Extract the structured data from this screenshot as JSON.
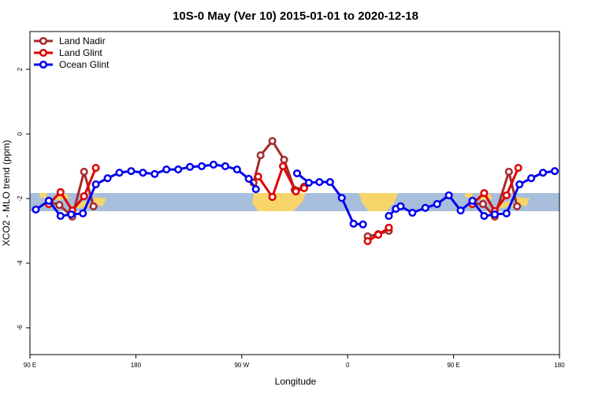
{
  "chart_data": {
    "type": "line",
    "title": "10S-0 May (Ver 10)   2015-01-01 to 2020-12-18",
    "x_label": "Longitude",
    "y_label": "XCO2 - MLO trend (ppm)",
    "xlim": [
      90,
      540
    ],
    "ylim": [
      -6.83,
      3.17
    ],
    "xticks": [
      {
        "value": 90,
        "label": "90 E"
      },
      180,
      {
        "value": 270,
        "label": "90 W"
      },
      {
        "value": 360,
        "label": "0"
      },
      {
        "value": 450,
        "label": "90 E"
      },
      {
        "value": 540,
        "label": "180"
      }
    ],
    "yticks": [
      2,
      0,
      -2,
      -4,
      -6
    ],
    "legend": "top-left",
    "series": [
      {
        "name": "Land Nadir",
        "color": "#a52a2a",
        "x": [
          106,
          115,
          126,
          136,
          144,
          null,
          280,
          286,
          296,
          306,
          315,
          323,
          null,
          377,
          386,
          395,
          null,
          466,
          475,
          485,
          497,
          504
        ],
        "values": [
          -2.1,
          -2.2,
          -2.56,
          -1.17,
          -2.24,
          null,
          -1.51,
          -0.66,
          -0.22,
          -0.8,
          -1.73,
          -1.63,
          null,
          -3.17,
          -3.1,
          -3.0,
          null,
          -2.15,
          -2.17,
          -2.56,
          -1.17,
          -2.24
        ]
      },
      {
        "name": "Land Glint",
        "color": "#e00000",
        "x": [
          106,
          116,
          126,
          136,
          146,
          null,
          284,
          296,
          305,
          316,
          323,
          null,
          377,
          386,
          395,
          null,
          466,
          476,
          485,
          495,
          505
        ],
        "values": [
          -2.17,
          -1.8,
          -2.37,
          -1.93,
          -1.05,
          null,
          -1.32,
          -1.95,
          -1.0,
          -1.78,
          -1.68,
          null,
          -3.32,
          -3.12,
          -2.9,
          null,
          -2.17,
          -1.83,
          -2.39,
          -1.9,
          -1.05
        ]
      },
      {
        "name": "Ocean Glint",
        "color": "#0000ee",
        "x": [
          95,
          106,
          116,
          125,
          135,
          146,
          156,
          166,
          176,
          186,
          196,
          206,
          216,
          226,
          236,
          246,
          256,
          266,
          276,
          282,
          null,
          317,
          327,
          336,
          345,
          355,
          365,
          373,
          null,
          395,
          401,
          405,
          415,
          426,
          436,
          446,
          456,
          466,
          476,
          485,
          495,
          506,
          516,
          526,
          536
        ],
        "values": [
          -2.34,
          -2.07,
          -2.54,
          -2.49,
          -2.46,
          -1.56,
          -1.37,
          -1.2,
          -1.15,
          -1.2,
          -1.24,
          -1.1,
          -1.1,
          -1.02,
          -1.0,
          -0.95,
          -1.0,
          -1.1,
          -1.39,
          -1.71,
          null,
          -1.22,
          -1.51,
          -1.49,
          -1.49,
          -1.98,
          -2.78,
          -2.8,
          null,
          -2.54,
          -2.32,
          -2.24,
          -2.44,
          -2.29,
          -2.17,
          -1.9,
          -2.37,
          -2.07,
          -2.54,
          -2.49,
          -2.46,
          -1.56,
          -1.37,
          -1.2,
          -1.15
        ]
      }
    ]
  }
}
